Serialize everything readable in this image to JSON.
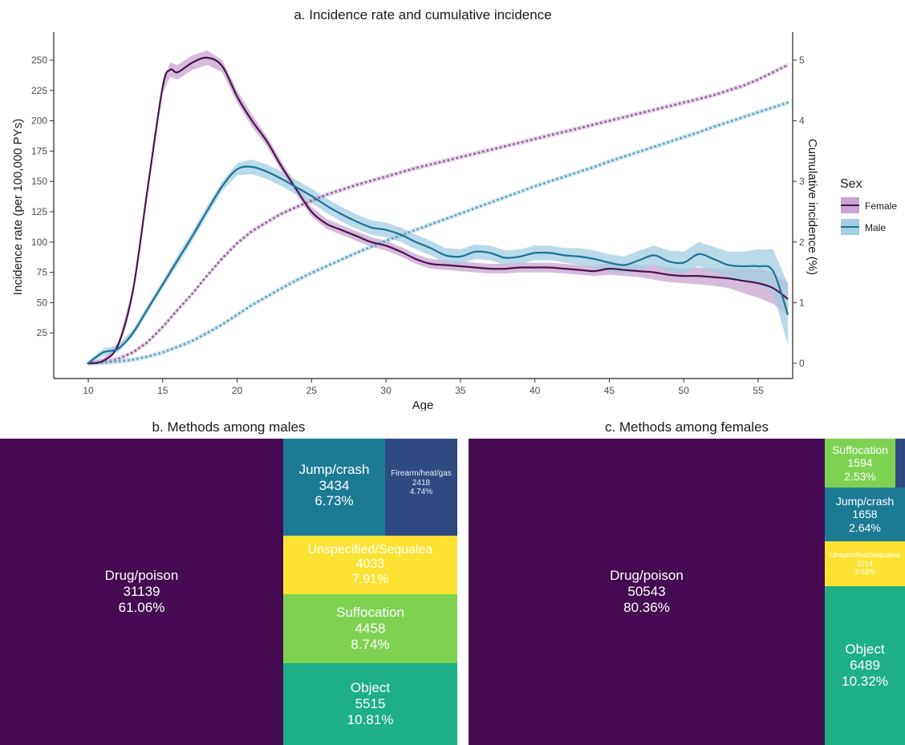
{
  "chart_data": [
    {
      "type": "line",
      "title": "a. Incidence rate and cumulative incidence",
      "xlabel": "Age",
      "ylabel": "Incidence rate (per 100,000 PYs)",
      "y2label": "Cumulative incidence (%)",
      "xlim": [
        10,
        57
      ],
      "ylim": [
        0,
        260
      ],
      "y2lim": [
        0,
        5.2
      ],
      "x_ticks": [
        "10",
        "15",
        "20",
        "25",
        "30",
        "35",
        "40",
        "45",
        "50",
        "55"
      ],
      "y_ticks": [
        "25",
        "50",
        "75",
        "100",
        "125",
        "150",
        "175",
        "200",
        "225",
        "250"
      ],
      "y2_ticks": [
        "0",
        "1",
        "2",
        "3",
        "4",
        "5"
      ],
      "legend": {
        "title": "Sex",
        "position": "right"
      },
      "grid": false,
      "series": [
        {
          "name": "Female",
          "color": "#4b1350",
          "band_color": "#c8a6cf",
          "x": [
            10,
            11,
            12,
            13,
            14,
            15,
            15.5,
            16,
            17,
            18,
            19,
            20,
            21,
            22,
            23,
            24,
            25,
            26,
            27,
            28,
            29,
            30,
            31,
            32,
            33,
            34,
            35,
            36,
            37,
            38,
            39,
            40,
            41,
            42,
            43,
            44,
            45,
            46,
            47,
            48,
            49,
            50,
            51,
            52,
            53,
            54,
            55,
            56,
            57
          ],
          "incidence": [
            0,
            2,
            15,
            60,
            145,
            228,
            242,
            240,
            248,
            252,
            245,
            220,
            200,
            183,
            162,
            143,
            125,
            115,
            110,
            105,
            100,
            97,
            92,
            86,
            82,
            81,
            80,
            79,
            78,
            78,
            79,
            79,
            79,
            78,
            77,
            76,
            78,
            77,
            76,
            75,
            73,
            72,
            72,
            71,
            70,
            68,
            66,
            62,
            53
          ],
          "cumulative": [
            0,
            0.02,
            0.07,
            0.18,
            0.35,
            0.6,
            0.74,
            0.88,
            1.15,
            1.45,
            1.73,
            1.98,
            2.18,
            2.33,
            2.47,
            2.58,
            2.68,
            2.78,
            2.86,
            2.94,
            3.01,
            3.08,
            3.15,
            3.22,
            3.28,
            3.34,
            3.4,
            3.46,
            3.52,
            3.58,
            3.64,
            3.7,
            3.76,
            3.82,
            3.88,
            3.94,
            4.0,
            4.06,
            4.12,
            4.18,
            4.24,
            4.3,
            4.36,
            4.42,
            4.5,
            4.58,
            4.68,
            4.8,
            4.92
          ],
          "band": [
            2,
            2,
            2,
            2,
            3,
            5,
            6,
            6,
            6,
            6,
            5,
            5,
            5,
            4,
            4,
            4,
            4,
            4,
            4,
            4,
            4,
            4,
            4,
            4,
            4,
            4,
            4,
            4,
            4,
            4,
            4,
            4,
            4,
            4,
            4,
            4,
            5,
            5,
            5,
            6,
            6,
            6,
            7,
            7,
            8,
            10,
            12,
            13,
            14
          ]
        },
        {
          "name": "Male",
          "color": "#1b7396",
          "band_color": "#a3cde0",
          "x": [
            10,
            11,
            12,
            13,
            14,
            15,
            16,
            17,
            18,
            19,
            20,
            21,
            22,
            23,
            24,
            25,
            26,
            27,
            28,
            29,
            30,
            31,
            32,
            33,
            34,
            35,
            36,
            37,
            38,
            39,
            40,
            41,
            42,
            43,
            44,
            45,
            46,
            47,
            48,
            49,
            50,
            51,
            52,
            53,
            54,
            55,
            56,
            57
          ],
          "incidence": [
            0,
            9,
            12,
            25,
            45,
            65,
            85,
            105,
            126,
            146,
            160,
            162,
            158,
            152,
            145,
            138,
            130,
            123,
            117,
            112,
            110,
            106,
            100,
            95,
            89,
            88,
            92,
            91,
            87,
            88,
            91,
            91,
            89,
            88,
            86,
            83,
            81,
            85,
            89,
            84,
            83,
            90,
            86,
            81,
            80,
            80,
            76,
            40
          ],
          "cumulative": [
            0,
            0.01,
            0.03,
            0.06,
            0.11,
            0.18,
            0.27,
            0.37,
            0.5,
            0.64,
            0.8,
            0.96,
            1.1,
            1.24,
            1.37,
            1.49,
            1.6,
            1.71,
            1.82,
            1.92,
            2.02,
            2.11,
            2.2,
            2.29,
            2.38,
            2.47,
            2.56,
            2.65,
            2.74,
            2.83,
            2.92,
            3.0,
            3.08,
            3.16,
            3.24,
            3.33,
            3.41,
            3.49,
            3.57,
            3.65,
            3.73,
            3.81,
            3.9,
            3.98,
            4.06,
            4.14,
            4.22,
            4.3
          ],
          "band": [
            2,
            3,
            3,
            3,
            3,
            3,
            4,
            4,
            4,
            4,
            5,
            6,
            6,
            6,
            6,
            6,
            6,
            6,
            6,
            6,
            6,
            6,
            6,
            6,
            6,
            6,
            6,
            6,
            6,
            6,
            6,
            6,
            6,
            7,
            7,
            7,
            7,
            8,
            8,
            9,
            9,
            10,
            10,
            11,
            12,
            14,
            18,
            25
          ]
        }
      ]
    },
    {
      "type": "treemap",
      "title": "b. Methods among males",
      "items": [
        {
          "label": "Drug/poison",
          "count": "31139",
          "percent": "61.06%",
          "color": "#450a52"
        },
        {
          "label": "Jump/crash",
          "count": "3434",
          "percent": "6.73%",
          "color": "#1b7b95"
        },
        {
          "label": "Firearm/heat/gas",
          "count": "2418",
          "percent": "4.74%",
          "color": "#2f4a82"
        },
        {
          "label": "Unspecified/Sequalea",
          "count": "4033",
          "percent": "7.91%",
          "color": "#fce232"
        },
        {
          "label": "Suffocation",
          "count": "4458",
          "percent": "8.74%",
          "color": "#7dd351"
        },
        {
          "label": "Object",
          "count": "5515",
          "percent": "10.81%",
          "color": "#1eaf86"
        }
      ]
    },
    {
      "type": "treemap",
      "title": "c. Methods among females",
      "items": [
        {
          "label": "Drug/poison",
          "count": "50543",
          "percent": "80.36%",
          "color": "#450a52"
        },
        {
          "label": "Suffocation",
          "count": "1594",
          "percent": "2.53%",
          "color": "#7dd351"
        },
        {
          "label": "",
          "count": "",
          "percent": "",
          "color": "#2f4a82"
        },
        {
          "label": "Jump/crash",
          "count": "1658",
          "percent": "2.64%",
          "color": "#1b7b95"
        },
        {
          "label": "Unspecified/Sequalea",
          "count": "2214",
          "percent": "3.52%",
          "color": "#fce232"
        },
        {
          "label": "Object",
          "count": "6489",
          "percent": "10.32%",
          "color": "#1eaf86"
        }
      ]
    }
  ]
}
